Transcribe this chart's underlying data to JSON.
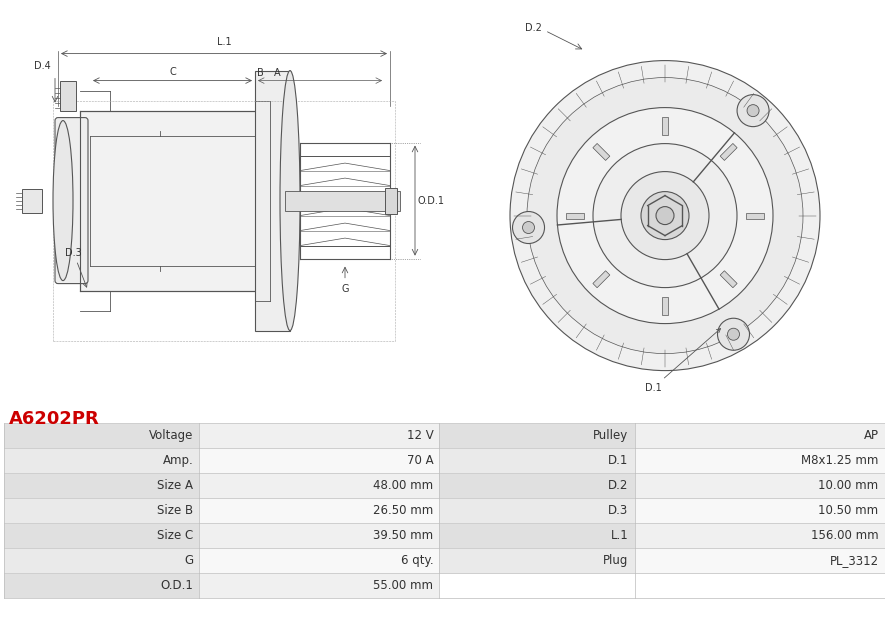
{
  "title": "A6202PR",
  "title_color": "#cc0000",
  "bg_color": "#ffffff",
  "lc": "#555555",
  "left_col_labels": [
    "Voltage",
    "Amp.",
    "Size A",
    "Size B",
    "Size C",
    "G",
    "O.D.1"
  ],
  "left_col_values": [
    "12 V",
    "70 A",
    "48.00 mm",
    "26.50 mm",
    "39.50 mm",
    "6 qty.",
    "55.00 mm"
  ],
  "right_col_labels": [
    "Pulley",
    "D.1",
    "D.2",
    "D.3",
    "L.1",
    "Plug",
    ""
  ],
  "right_col_values": [
    "AP",
    "M8x1.25 mm",
    "10.00 mm",
    "10.50 mm",
    "156.00 mm",
    "PL_3312",
    ""
  ]
}
